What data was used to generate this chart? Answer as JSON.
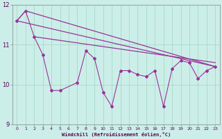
{
  "xlabel": "Windchill (Refroidissement éolien,°C)",
  "background_color": "#cceee8",
  "grid_color": "#aaddcc",
  "line_color": "#993399",
  "ylim": [
    9,
    12
  ],
  "xlim": [
    -0.5,
    23.5
  ],
  "yticks": [
    9,
    10,
    11,
    12
  ],
  "xticks": [
    0,
    1,
    2,
    3,
    4,
    5,
    6,
    7,
    8,
    9,
    10,
    11,
    12,
    13,
    14,
    15,
    16,
    17,
    18,
    19,
    20,
    21,
    22,
    23
  ],
  "windchill_x": [
    0,
    1,
    2,
    3,
    4,
    5,
    7,
    8,
    9,
    10,
    11,
    12,
    13,
    14,
    15,
    16,
    17,
    18,
    19,
    20,
    21,
    22,
    23
  ],
  "windchill_y": [
    11.6,
    11.85,
    11.2,
    10.75,
    9.85,
    9.85,
    10.05,
    10.85,
    10.65,
    9.8,
    9.45,
    10.35,
    10.35,
    10.25,
    10.2,
    10.35,
    9.45,
    10.4,
    10.6,
    10.55,
    10.15,
    10.35,
    10.45
  ],
  "trend_line1_x": [
    0,
    1,
    23
  ],
  "trend_line1_y": [
    11.6,
    11.85,
    10.45
  ],
  "trend_line2_x": [
    2,
    23
  ],
  "trend_line2_y": [
    11.2,
    10.55
  ],
  "trend_line3_x": [
    0,
    23
  ],
  "trend_line3_y": [
    11.6,
    10.45
  ]
}
